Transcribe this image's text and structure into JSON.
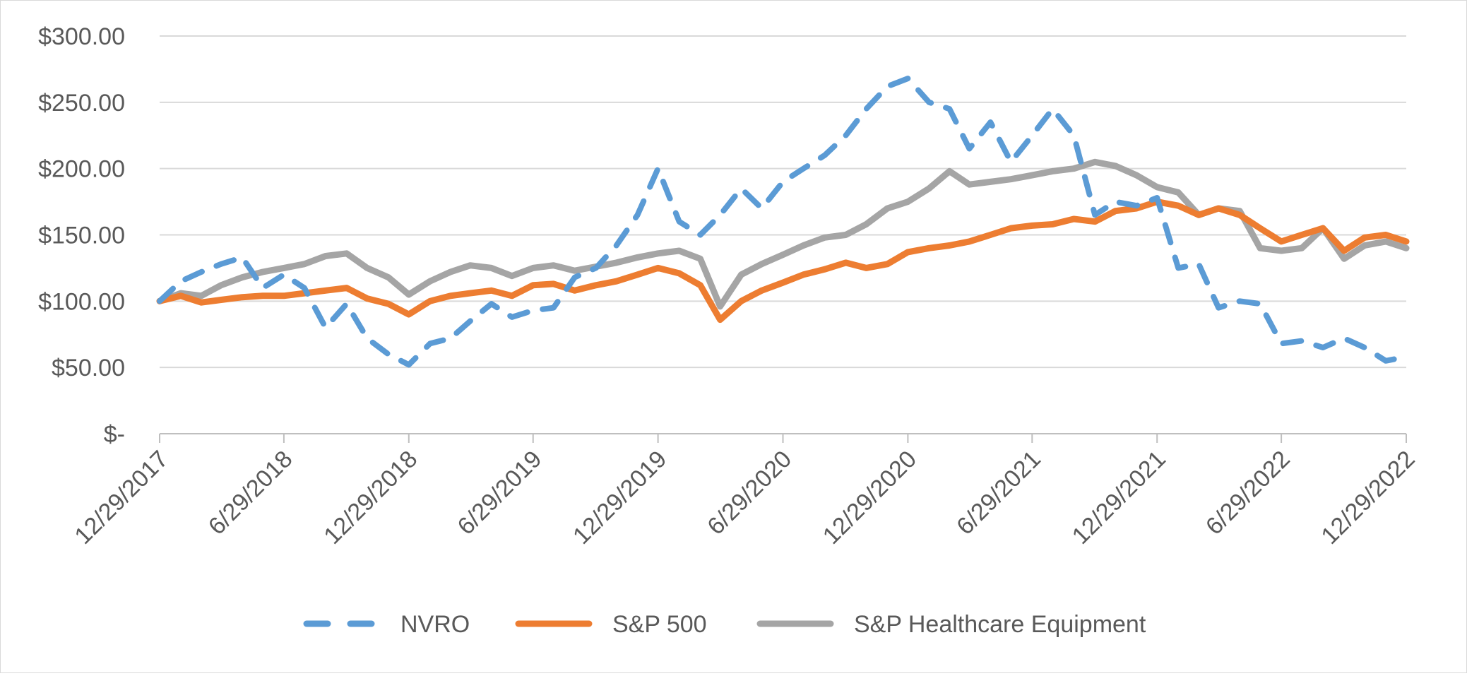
{
  "chart_data": {
    "type": "line",
    "x_ticks": [
      "12/29/2017",
      "6/29/2018",
      "12/29/2018",
      "6/29/2019",
      "12/29/2019",
      "6/29/2020",
      "12/29/2020",
      "6/29/2021",
      "12/29/2021",
      "6/29/2022",
      "12/29/2022"
    ],
    "y_ticks": [
      "$-",
      "$50.00",
      "$100.00",
      "$150.00",
      "$200.00",
      "$250.00",
      "$300.00"
    ],
    "ylim": [
      0,
      300
    ],
    "grid": "horizontal",
    "legend_position": "bottom",
    "x": [
      "12/29/2017",
      "1/29/2018",
      "2/28/2018",
      "3/29/2018",
      "4/29/2018",
      "5/29/2018",
      "6/29/2018",
      "7/29/2018",
      "8/29/2018",
      "9/29/2018",
      "10/29/2018",
      "11/29/2018",
      "12/29/2018",
      "1/29/2019",
      "2/28/2019",
      "3/29/2019",
      "4/29/2019",
      "5/29/2019",
      "6/29/2019",
      "7/29/2019",
      "8/29/2019",
      "9/29/2019",
      "10/29/2019",
      "11/29/2019",
      "12/29/2019",
      "1/29/2020",
      "2/29/2020",
      "3/29/2020",
      "4/29/2020",
      "5/29/2020",
      "6/29/2020",
      "7/29/2020",
      "8/29/2020",
      "9/29/2020",
      "10/29/2020",
      "11/29/2020",
      "12/29/2020",
      "1/29/2021",
      "2/28/2021",
      "3/29/2021",
      "4/29/2021",
      "5/29/2021",
      "6/29/2021",
      "7/29/2021",
      "8/29/2021",
      "9/29/2021",
      "10/29/2021",
      "11/29/2021",
      "12/29/2021",
      "1/29/2022",
      "2/28/2022",
      "3/29/2022",
      "4/29/2022",
      "5/29/2022",
      "6/29/2022",
      "7/29/2022",
      "8/29/2022",
      "9/29/2022",
      "10/29/2022",
      "11/29/2022",
      "12/29/2022"
    ],
    "series": [
      {
        "name": "NVRO",
        "color": "#5b9bd5",
        "style": "dashed",
        "values": [
          100,
          115,
          122,
          128,
          133,
          110,
          120,
          110,
          80,
          98,
          72,
          60,
          52,
          68,
          72,
          85,
          98,
          88,
          93,
          95,
          118,
          125,
          142,
          165,
          200,
          160,
          150,
          165,
          185,
          170,
          190,
          200,
          210,
          225,
          245,
          262,
          268,
          250,
          245,
          215,
          235,
          205,
          225,
          245,
          225,
          165,
          175,
          172,
          178,
          125,
          128,
          95,
          100,
          98,
          68,
          70,
          65,
          72,
          65,
          55,
          58
        ]
      },
      {
        "name": "S&P 500",
        "color": "#ed7d31",
        "style": "solid",
        "values": [
          100,
          104,
          99,
          101,
          103,
          104,
          104,
          106,
          108,
          110,
          102,
          98,
          90,
          100,
          104,
          106,
          108,
          104,
          112,
          113,
          108,
          112,
          115,
          120,
          125,
          121,
          112,
          86,
          100,
          108,
          114,
          120,
          124,
          129,
          125,
          128,
          137,
          140,
          142,
          145,
          150,
          155,
          157,
          158,
          162,
          160,
          168,
          170,
          175,
          172,
          165,
          170,
          165,
          155,
          145,
          150,
          155,
          138,
          148,
          150,
          145
        ]
      },
      {
        "name": "S&P Healthcare Equipment",
        "color": "#a5a5a5",
        "style": "solid",
        "values": [
          100,
          106,
          104,
          112,
          118,
          122,
          125,
          128,
          134,
          136,
          125,
          118,
          105,
          115,
          122,
          127,
          125,
          119,
          125,
          127,
          123,
          126,
          129,
          133,
          136,
          138,
          132,
          96,
          120,
          128,
          135,
          142,
          148,
          150,
          158,
          170,
          175,
          185,
          198,
          188,
          190,
          192,
          195,
          198,
          200,
          205,
          202,
          195,
          186,
          182,
          165,
          170,
          168,
          140,
          138,
          140,
          155,
          132,
          142,
          145,
          140
        ]
      }
    ]
  }
}
